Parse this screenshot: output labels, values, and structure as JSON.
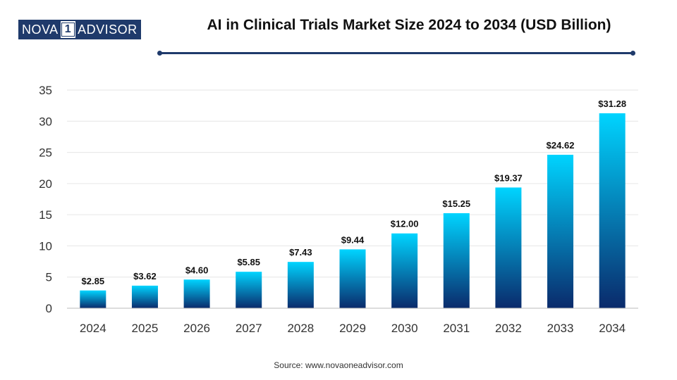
{
  "logo": {
    "left": "NOVA",
    "mid": "1",
    "right": "ADVISOR"
  },
  "title": "AI in Clinical Trials Market Size 2024 to 2034 (USD Billion)",
  "source": "Source: www.novaoneadvisor.com",
  "colors": {
    "bar_top": "#00d4ff",
    "bar_bottom": "#0a2a6b",
    "accent": "#1f3a6b",
    "grid": "#e6e6e6"
  },
  "chart_data": {
    "type": "bar",
    "categories": [
      "2024",
      "2025",
      "2026",
      "2027",
      "2028",
      "2029",
      "2030",
      "2031",
      "2032",
      "2033",
      "2034"
    ],
    "values": [
      2.85,
      3.62,
      4.6,
      5.85,
      7.43,
      9.44,
      12.0,
      15.25,
      19.37,
      24.62,
      31.28
    ],
    "data_labels": [
      "$2.85",
      "$3.62",
      "$4.60",
      "$5.85",
      "$7.43",
      "$9.44",
      "$12.00",
      "$15.25",
      "$19.37",
      "$24.62",
      "$31.28"
    ],
    "title": "AI in Clinical Trials Market Size 2024 to 2034 (USD Billion)",
    "xlabel": "",
    "ylabel": "",
    "ylim": [
      0,
      35
    ],
    "yticks": [
      0,
      5,
      10,
      15,
      20,
      25,
      30,
      35
    ],
    "grid": true,
    "legend": "none"
  }
}
